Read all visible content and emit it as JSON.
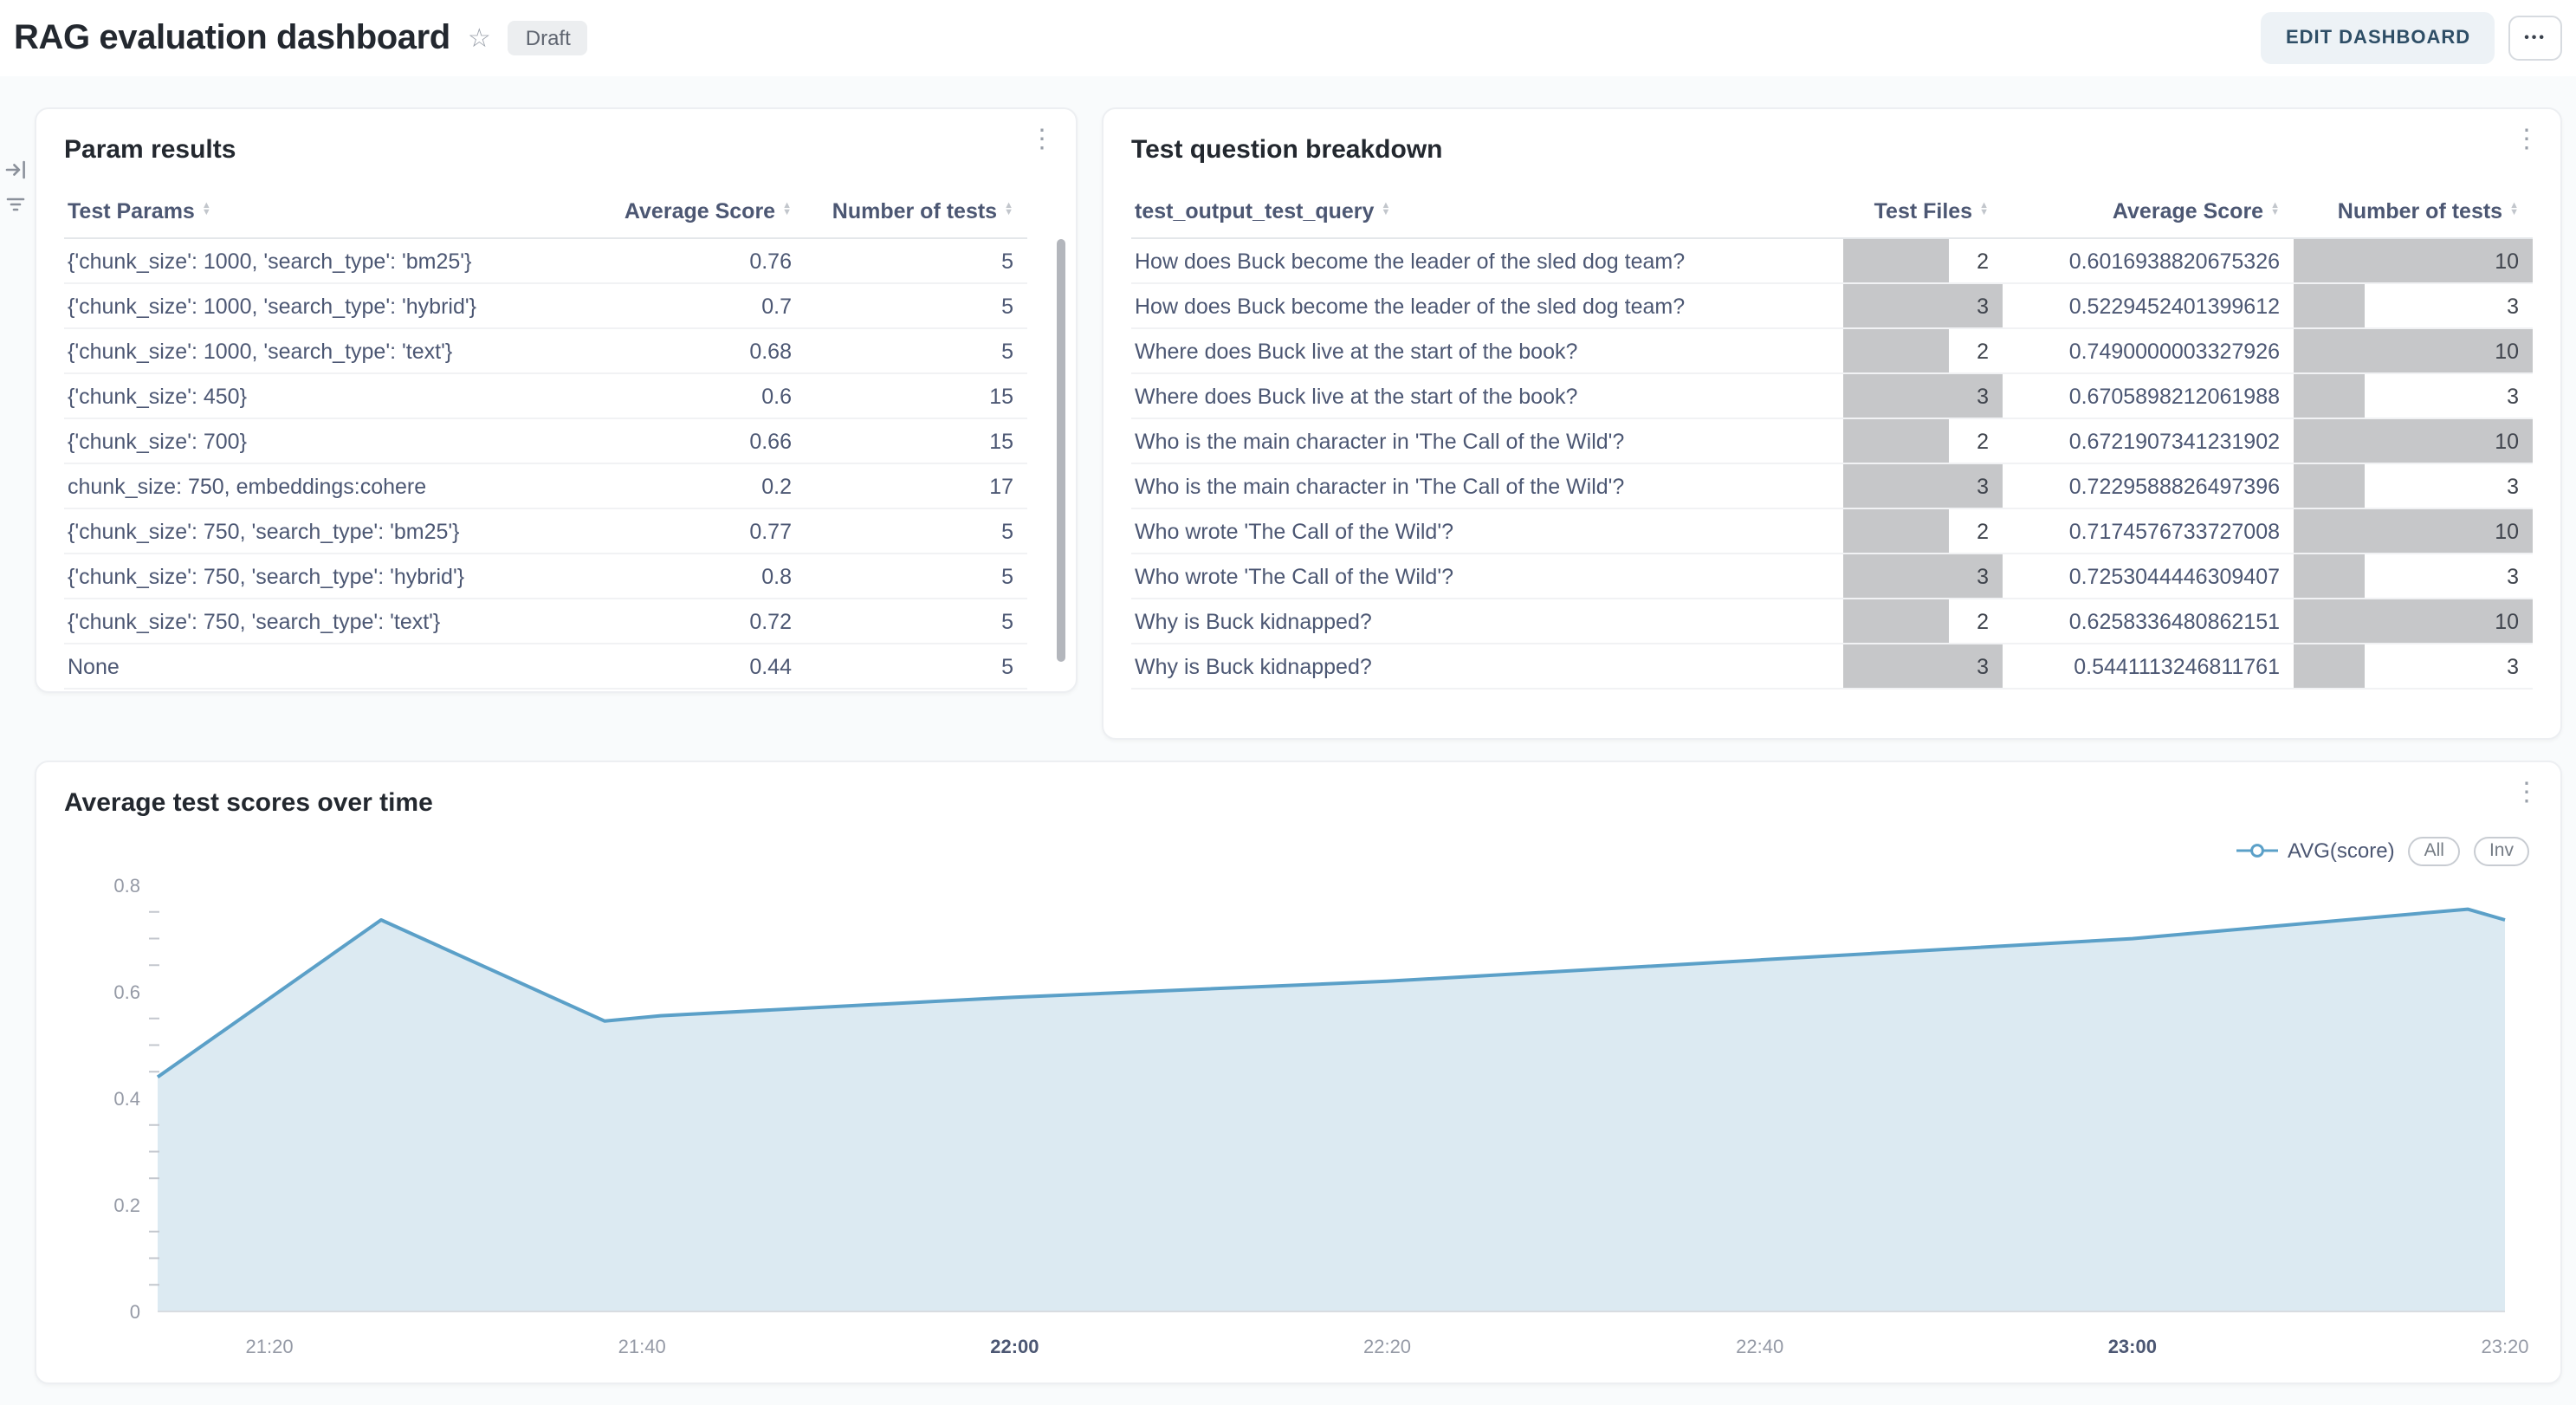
{
  "header": {
    "title": "RAG evaluation dashboard",
    "badge": "Draft",
    "edit_button": "EDIT DASHBOARD"
  },
  "icons": {
    "star": "☆",
    "more": "•••",
    "kebab": "⋮",
    "sort_asc": "▲",
    "sort_desc": "▼"
  },
  "colors": {
    "accent": "#509EE3",
    "line": "#5BA0C8",
    "fill": "#DCEAF2",
    "bar": "#C6C7C9"
  },
  "cards": {
    "param_results": {
      "title": "Param results",
      "columns": [
        "Test Params",
        "Average Score",
        "Number of tests"
      ],
      "rows": [
        [
          "{'chunk_size': 1000, 'search_type': 'bm25'}",
          "0.76",
          "5"
        ],
        [
          "{'chunk_size': 1000, 'search_type': 'hybrid'}",
          "0.7",
          "5"
        ],
        [
          "{'chunk_size': 1000, 'search_type': 'text'}",
          "0.68",
          "5"
        ],
        [
          "{'chunk_size': 450}",
          "0.6",
          "15"
        ],
        [
          "{'chunk_size': 700}",
          "0.66",
          "15"
        ],
        [
          "chunk_size: 750, embeddings:cohere",
          "0.2",
          "17"
        ],
        [
          "{'chunk_size': 750, 'search_type': 'bm25'}",
          "0.77",
          "5"
        ],
        [
          "{'chunk_size': 750, 'search_type': 'hybrid'}",
          "0.8",
          "5"
        ],
        [
          "{'chunk_size': 750, 'search_type': 'text'}",
          "0.72",
          "5"
        ],
        [
          "None",
          "0.44",
          "5"
        ]
      ]
    },
    "question_breakdown": {
      "title": "Test question breakdown",
      "columns": [
        "test_output_test_query",
        "Test Files",
        "Average Score",
        "Number of tests"
      ],
      "max_test_files": 3,
      "max_num_tests": 10,
      "rows": [
        {
          "query": "How does Buck become the leader of the sled dog team?",
          "test_files": 2,
          "avg_score": "0.6016938820675326",
          "num_tests": 10
        },
        {
          "query": "How does Buck become the leader of the sled dog team?",
          "test_files": 3,
          "avg_score": "0.5229452401399612",
          "num_tests": 3
        },
        {
          "query": "Where does Buck live at the start of the book?",
          "test_files": 2,
          "avg_score": "0.7490000003327926",
          "num_tests": 10
        },
        {
          "query": "Where does Buck live at the start of the book?",
          "test_files": 3,
          "avg_score": "0.6705898212061988",
          "num_tests": 3
        },
        {
          "query": "Who is the main character in 'The Call of the Wild'?",
          "test_files": 2,
          "avg_score": "0.6721907341231902",
          "num_tests": 10
        },
        {
          "query": "Who is the main character in 'The Call of the Wild'?",
          "test_files": 3,
          "avg_score": "0.7229588826497396",
          "num_tests": 3
        },
        {
          "query": "Who wrote 'The Call of the Wild'?",
          "test_files": 2,
          "avg_score": "0.7174576733727008",
          "num_tests": 10
        },
        {
          "query": "Who wrote 'The Call of the Wild'?",
          "test_files": 3,
          "avg_score": "0.7253044446309407",
          "num_tests": 3
        },
        {
          "query": "Why is Buck kidnapped?",
          "test_files": 2,
          "avg_score": "0.6258336480862151",
          "num_tests": 10
        },
        {
          "query": "Why is Buck kidnapped?",
          "test_files": 3,
          "avg_score": "0.5441113246811761",
          "num_tests": 3
        }
      ]
    },
    "scores_over_time": {
      "title": "Average test scores over time",
      "legend": {
        "series": "AVG(score)",
        "all_button": "All",
        "inv_button": "Inv"
      }
    }
  },
  "chart_data": {
    "type": "area",
    "title": "Average test scores over time",
    "series_name": "AVG(score)",
    "x": [
      "21:14",
      "21:26",
      "21:38",
      "21:41",
      "22:00",
      "22:20",
      "22:40",
      "23:00",
      "23:18",
      "23:20"
    ],
    "values": [
      0.44,
      0.735,
      0.545,
      0.555,
      0.59,
      0.62,
      0.66,
      0.7,
      0.755,
      0.735
    ],
    "xlabel": "",
    "ylabel": "",
    "ylim": [
      0,
      0.8
    ],
    "yticks": [
      0,
      0.2,
      0.4,
      0.6,
      0.8
    ],
    "minor_ytick_step": 0.05,
    "xticks": [
      "21:20",
      "21:40",
      "22:00",
      "22:20",
      "22:40",
      "23:00",
      "23:20"
    ],
    "bold_xticks": [
      "22:00",
      "23:00"
    ],
    "line_color": "#5BA0C8",
    "fill_color": "#DCEAF2",
    "legend_position": "top-right",
    "grid": false
  }
}
